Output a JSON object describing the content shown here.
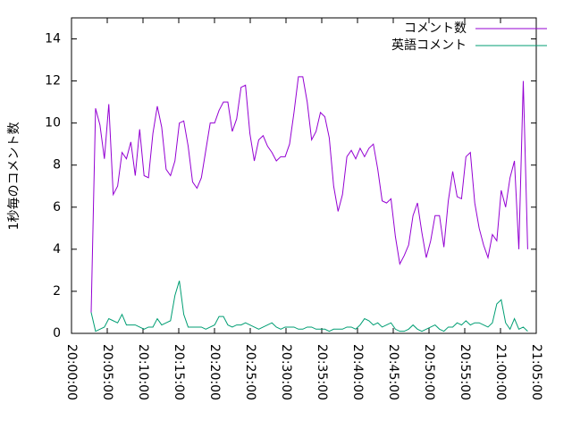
{
  "chart_data": {
    "type": "line",
    "ylabel": "1秒毎のコメント数",
    "x": [
      "20:02:45",
      "20:03:22",
      "20:03:59",
      "20:04:36",
      "20:05:13",
      "20:05:50",
      "20:06:27",
      "20:07:04",
      "20:07:41",
      "20:08:18",
      "20:08:55",
      "20:09:32",
      "20:10:09",
      "20:10:46",
      "20:11:23",
      "20:12:00",
      "20:12:37",
      "20:13:14",
      "20:13:51",
      "20:14:28",
      "20:15:05",
      "20:15:42",
      "20:16:19",
      "20:16:56",
      "20:17:33",
      "20:18:10",
      "20:18:47",
      "20:19:24",
      "20:20:01",
      "20:20:38",
      "20:21:15",
      "20:21:52",
      "20:22:29",
      "20:23:06",
      "20:23:43",
      "20:24:20",
      "20:24:57",
      "20:25:34",
      "20:26:11",
      "20:26:48",
      "20:27:25",
      "20:28:02",
      "20:28:39",
      "20:29:16",
      "20:29:53",
      "20:30:30",
      "20:31:07",
      "20:31:44",
      "20:32:21",
      "20:32:58",
      "20:33:35",
      "20:34:12",
      "20:34:49",
      "20:35:26",
      "20:36:03",
      "20:36:40",
      "20:37:17",
      "20:37:54",
      "20:38:31",
      "20:39:08",
      "20:39:45",
      "20:40:22",
      "20:40:59",
      "20:41:36",
      "20:42:13",
      "20:42:50",
      "20:43:27",
      "20:44:04",
      "20:44:41",
      "20:45:18",
      "20:45:55",
      "20:46:32",
      "20:47:09",
      "20:47:46",
      "20:48:23",
      "20:49:00",
      "20:49:37",
      "20:50:14",
      "20:50:51",
      "20:51:28",
      "20:52:05",
      "20:52:42",
      "20:53:19",
      "20:53:56",
      "20:54:33",
      "20:55:10",
      "20:55:47",
      "20:56:24",
      "20:57:01",
      "20:57:38",
      "20:58:15",
      "20:58:52",
      "20:59:29",
      "21:00:06",
      "21:00:43",
      "21:01:20",
      "21:01:57",
      "21:02:34",
      "21:03:11",
      "21:03:48"
    ],
    "series": [
      {
        "name": "コメント数",
        "color": "#9400d3",
        "values": [
          1.0,
          10.7,
          9.9,
          8.3,
          10.9,
          6.6,
          7.0,
          8.6,
          8.3,
          9.1,
          7.5,
          9.7,
          7.5,
          7.4,
          9.5,
          10.8,
          9.8,
          7.8,
          7.5,
          8.2,
          10.0,
          10.1,
          8.9,
          7.2,
          6.9,
          7.4,
          8.7,
          10.0,
          10.0,
          10.6,
          11.0,
          11.0,
          9.6,
          10.2,
          11.7,
          11.8,
          9.5,
          8.2,
          9.2,
          9.4,
          8.9,
          8.6,
          8.2,
          8.4,
          8.4,
          9.0,
          10.5,
          12.2,
          12.2,
          11.0,
          9.2,
          9.6,
          10.5,
          10.3,
          9.3,
          7.0,
          5.8,
          6.6,
          8.4,
          8.7,
          8.3,
          8.8,
          8.4,
          8.8,
          9.0,
          7.8,
          6.3,
          6.2,
          6.4,
          4.6,
          3.3,
          3.7,
          4.2,
          5.6,
          6.2,
          4.8,
          3.6,
          4.4,
          5.6,
          5.6,
          4.1,
          6.3,
          7.7,
          6.5,
          6.4,
          8.4,
          8.6,
          6.2,
          5.0,
          4.2,
          3.6,
          4.7,
          4.4,
          6.8,
          6.0,
          7.4,
          8.2,
          4.0,
          12.0,
          4.0
        ]
      },
      {
        "name": "英語コメント",
        "color": "#009e73",
        "values": [
          1.0,
          0.1,
          0.2,
          0.3,
          0.7,
          0.6,
          0.5,
          0.9,
          0.4,
          0.4,
          0.4,
          0.3,
          0.2,
          0.3,
          0.3,
          0.7,
          0.4,
          0.5,
          0.6,
          1.8,
          2.5,
          0.9,
          0.3,
          0.3,
          0.3,
          0.3,
          0.2,
          0.3,
          0.4,
          0.8,
          0.8,
          0.4,
          0.3,
          0.4,
          0.4,
          0.5,
          0.4,
          0.3,
          0.2,
          0.3,
          0.4,
          0.5,
          0.3,
          0.2,
          0.3,
          0.3,
          0.3,
          0.2,
          0.2,
          0.3,
          0.3,
          0.2,
          0.2,
          0.2,
          0.1,
          0.2,
          0.2,
          0.2,
          0.3,
          0.3,
          0.2,
          0.4,
          0.7,
          0.6,
          0.4,
          0.5,
          0.3,
          0.4,
          0.5,
          0.2,
          0.1,
          0.1,
          0.2,
          0.4,
          0.2,
          0.1,
          0.2,
          0.3,
          0.4,
          0.2,
          0.1,
          0.3,
          0.3,
          0.5,
          0.4,
          0.6,
          0.4,
          0.5,
          0.5,
          0.4,
          0.3,
          0.5,
          1.4,
          1.6,
          0.5,
          0.2,
          0.7,
          0.2,
          0.3,
          0.1
        ]
      }
    ],
    "xlim": [
      "20:00:00",
      "21:05:00"
    ],
    "xticks": [
      "20:00:00",
      "20:05:00",
      "20:10:00",
      "20:15:00",
      "20:20:00",
      "20:25:00",
      "20:30:00",
      "20:35:00",
      "20:40:00",
      "20:45:00",
      "20:50:00",
      "20:55:00",
      "21:00:00",
      "21:05:00"
    ],
    "ylim": [
      0,
      15
    ],
    "yticks": [
      0,
      2,
      4,
      6,
      8,
      10,
      12,
      14
    ],
    "legend": "top-right"
  }
}
